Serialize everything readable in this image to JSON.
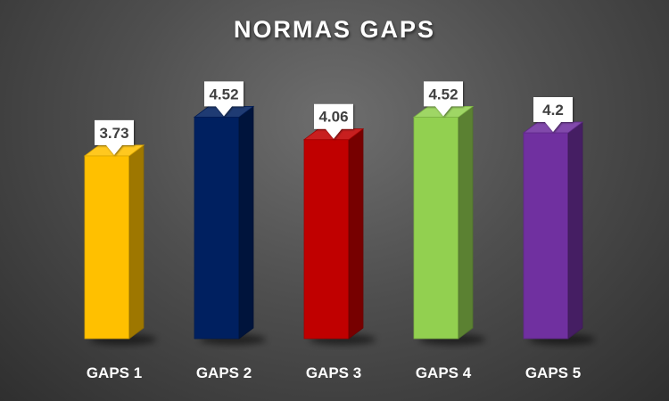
{
  "chart_data": {
    "type": "bar",
    "title": "NORMAS GAPS",
    "categories": [
      "GAPS 1",
      "GAPS 2",
      "GAPS 3",
      "GAPS 4",
      "GAPS 5"
    ],
    "values": [
      3.73,
      4.52,
      4.06,
      4.52,
      4.2
    ],
    "value_labels": [
      "3.73",
      "4.52",
      "4.06",
      "4.52",
      "4.2"
    ],
    "colors": [
      "#FFC000",
      "#002060",
      "#C00000",
      "#92D050",
      "#7030A0"
    ],
    "ylim": [
      0,
      5
    ],
    "grid": false,
    "legend": "none",
    "style": "3d-column"
  }
}
